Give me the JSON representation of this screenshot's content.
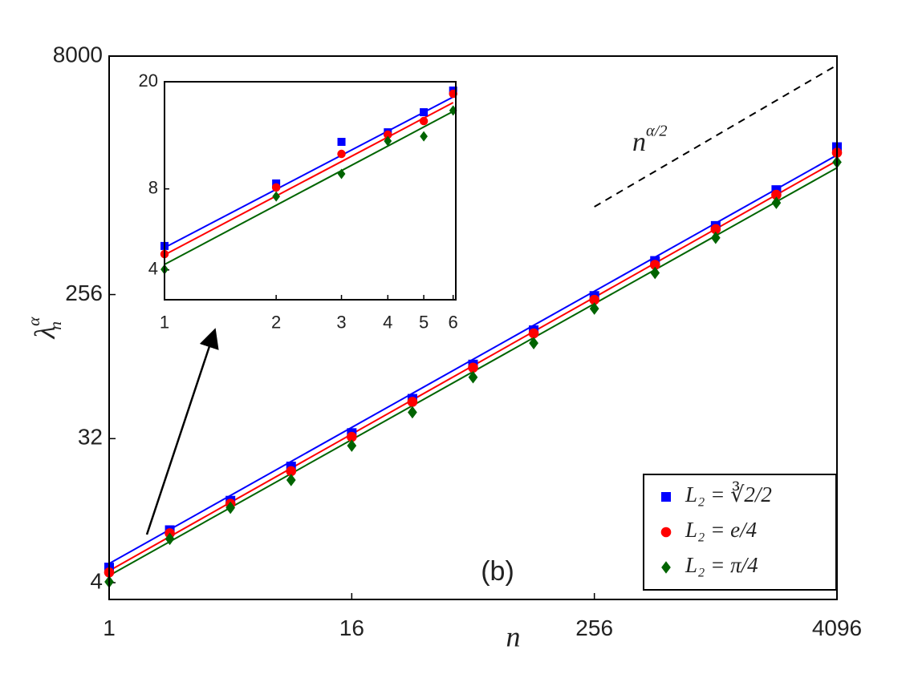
{
  "chart_data": [
    {
      "type": "scatter",
      "xscale": "log",
      "yscale": "log",
      "xlabel": "n",
      "ylabel": {
        "text": "λ",
        "superscript": "α",
        "subscript": "n"
      },
      "x": [
        1,
        2,
        4,
        8,
        16,
        32,
        64,
        128,
        256,
        512,
        1024,
        2048,
        4096
      ],
      "xlim": [
        1,
        4096
      ],
      "xticks": [
        1,
        16,
        256,
        4096
      ],
      "ylim": [
        3.14,
        8000
      ],
      "yticks": [
        4,
        32,
        256,
        8000
      ],
      "legend": "lower right",
      "annotation": "(b)",
      "reference_line": {
        "x": [
          256,
          4096
        ],
        "values": [
          909,
          7030
        ],
        "label": {
          "text": "n",
          "superscript": "α/2"
        }
      },
      "series": [
        {
          "name": "L₂ = ∛2/2",
          "color": "#0000ff",
          "marker": "square",
          "values": [
            4.98,
            8.54,
            13.07,
            21.4,
            34.7,
            56.9,
            93.3,
            153,
            251,
            416,
            690,
            1157,
            2151
          ],
          "fit": {
            "x": [
              1,
              4096
            ],
            "values": [
              5.27,
              1917
            ]
          }
        },
        {
          "name": "L₂ = e/4",
          "color": "#ff0000",
          "marker": "circle",
          "values": [
            4.64,
            8.16,
            12.5,
            20.0,
            32.8,
            54.4,
            89.1,
            146,
            237,
            393,
            658,
            1080,
            1985
          ],
          "fit": {
            "x": [
              1,
              4096
            ],
            "values": [
              4.75,
              1769
            ]
          }
        },
        {
          "name": "L₂ = π/4",
          "color": "#006400",
          "marker": "diamond",
          "values": [
            4.05,
            7.53,
            11.8,
            17.6,
            28.9,
            46.8,
            77.6,
            127,
            209,
            350,
            581,
            962,
            1730
          ],
          "fit": {
            "x": [
              1,
              4096
            ],
            "values": [
              4.43,
              1596
            ]
          }
        }
      ]
    },
    {
      "type": "scatter",
      "xscale": "log",
      "yscale": "log",
      "x": [
        1,
        2,
        3,
        4,
        5,
        6
      ],
      "xlim": [
        1,
        6.1
      ],
      "xticks": [
        1,
        2,
        3,
        4,
        5,
        6
      ],
      "ylim": [
        3.1,
        20
      ],
      "yticks": [
        4,
        8,
        20
      ],
      "series": [
        {
          "color": "#0000ff",
          "marker": "square",
          "values": [
            4.91,
            8.38,
            11.96,
            12.98,
            15.41,
            18.55
          ],
          "fit": {
            "x": [
              1,
              6
            ],
            "values": [
              4.84,
              17.56
            ]
          }
        },
        {
          "color": "#ff0000",
          "marker": "circle",
          "values": [
            4.58,
            8.1,
            10.79,
            12.72,
            14.29,
            18.04
          ],
          "fit": {
            "x": [
              1,
              6
            ],
            "values": [
              4.55,
              16.73
            ]
          }
        },
        {
          "color": "#006400",
          "marker": "diamond",
          "values": [
            4.02,
            7.5,
            9.09,
            12.04,
            12.54,
            15.64
          ],
          "fit": {
            "x": [
              1,
              6
            ],
            "values": [
              4.19,
              15.52
            ]
          }
        }
      ]
    }
  ]
}
